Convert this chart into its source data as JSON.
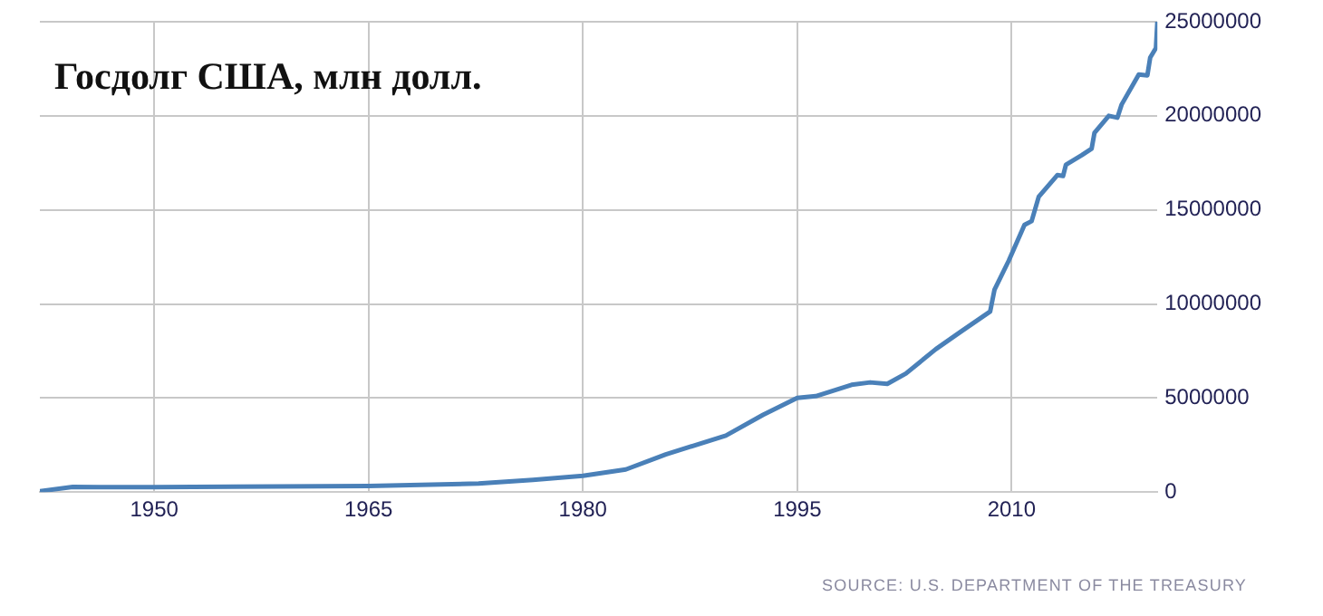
{
  "chart_data": {
    "type": "line",
    "title": "Госдолг США, млн долл.",
    "annotations": [
      "SOURCE: U.S. DEPARTMENT OF THE TREASURY"
    ],
    "xlim": [
      1942,
      2020.2
    ],
    "xticks": [
      1950,
      1965,
      1980,
      1995,
      2010
    ],
    "ylim": [
      0,
      25000000
    ],
    "yticks": [
      0,
      5000000,
      10000000,
      15000000,
      20000000,
      25000000
    ],
    "grid": true,
    "marker": "none",
    "line_style": "solid",
    "series": [
      {
        "color": "#4a80b8",
        "x": [
          1942,
          1944.3,
          1946.2,
          1950,
          1965,
          1972.7,
          1976.5,
          1980,
          1983,
          1985.8,
          1990,
          1992.6,
          1995,
          1996.3,
          1998.8,
          2000.1,
          2001.3,
          2002.6,
          2004.7,
          2006.4,
          2008.5,
          2008.8,
          2009.8,
          2010.9,
          2011.4,
          2011.9,
          2013.2,
          2013.6,
          2013.8,
          2014.9,
          2015.6,
          2015.8,
          2016.8,
          2017.4,
          2017.7,
          2018.9,
          2019.5,
          2019.7,
          2020.1,
          2020.2
        ],
        "values": [
          50000,
          270000,
          260000,
          260000,
          320000,
          450000,
          650000,
          860000,
          1200000,
          2000000,
          3000000,
          4100000,
          5000000,
          5100000,
          5700000,
          5830000,
          5750000,
          6300000,
          7600000,
          8500000,
          9600000,
          10750000,
          12300000,
          14200000,
          14400000,
          15700000,
          16850000,
          16800000,
          17400000,
          17900000,
          18250000,
          19100000,
          20000000,
          19900000,
          20600000,
          22200000,
          22150000,
          23100000,
          23600000,
          25000000
        ]
      }
    ]
  }
}
